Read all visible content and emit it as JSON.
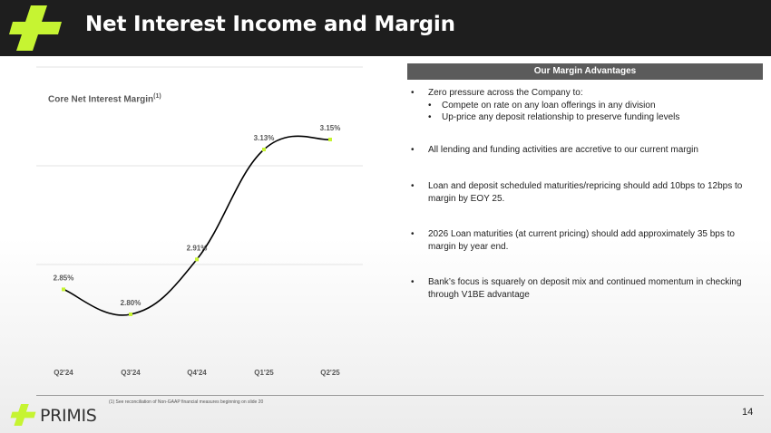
{
  "header": {
    "title": "Net Interest Income and Margin"
  },
  "chart_data": {
    "type": "line",
    "title": "Core Net Interest Margin",
    "title_footnote": "(1)",
    "categories": [
      "Q2'24",
      "Q3'24",
      "Q4'24",
      "Q1'25",
      "Q2'25"
    ],
    "series": [
      {
        "values": [
          2.85,
          2.8,
          2.91,
          3.13,
          3.15
        ],
        "labels": [
          "2.85%",
          "2.80%",
          "2.91%",
          "3.13%",
          "3.15%"
        ]
      }
    ],
    "line_color": "#000000",
    "marker_color": "#c6f432",
    "grid": true,
    "smooth": true
  },
  "panel": {
    "heading": "Our Margin Advantages",
    "bullets": [
      {
        "text": "Zero pressure across the Company to:",
        "sub": [
          "Compete on rate on any loan offerings in any division",
          "Up-price any deposit relationship to preserve funding levels"
        ]
      },
      {
        "text": "All lending and funding activities are accretive to our current margin"
      },
      {
        "text": "Loan and deposit scheduled maturities/repricing should add 10bps to 12bps to margin by EOY 25."
      },
      {
        "text": "2026 Loan maturities (at current pricing) should add approximately 35 bps to margin by year end."
      },
      {
        "text": "Bank’s focus is squarely on deposit mix and continued momentum in checking through V1BE advantage"
      }
    ],
    "bullet_glyph": "•"
  },
  "footer": {
    "footnote": "(1)     See reconciliation of Non-GAAP financial measures beginning on slide 20",
    "brand": "PRIMIS",
    "page_number": "14"
  },
  "colors": {
    "accent": "#c6f432",
    "header_bg": "#1e1e1e",
    "panel_header_bg": "#5b5b5b"
  }
}
